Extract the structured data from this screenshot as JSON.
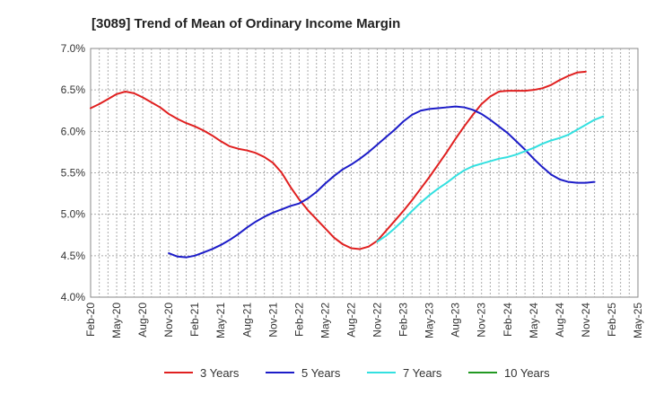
{
  "chart_data": {
    "type": "line",
    "title": "[3089]  Trend of Mean of Ordinary Income Margin",
    "xlabel": "",
    "ylabel": "",
    "x_ticks": [
      "Feb-20",
      "May-20",
      "Aug-20",
      "Nov-20",
      "Feb-21",
      "May-21",
      "Aug-21",
      "Nov-21",
      "Feb-22",
      "May-22",
      "Aug-22",
      "Nov-22",
      "Feb-23",
      "May-23",
      "Aug-23",
      "Nov-23",
      "Feb-24",
      "May-24",
      "Aug-24",
      "Nov-24",
      "Feb-25",
      "May-25"
    ],
    "y_ticks": [
      "4.0%",
      "4.5%",
      "5.0%",
      "5.5%",
      "6.0%",
      "6.5%",
      "7.0%"
    ],
    "ylim": [
      4.0,
      7.0
    ],
    "grid": true,
    "legend_position": "bottom",
    "series": [
      {
        "name": "3 Years",
        "color": "#e02020",
        "start_index": 0,
        "values": [
          6.28,
          6.33,
          6.39,
          6.45,
          6.48,
          6.46,
          6.41,
          6.35,
          6.29,
          6.21,
          6.15,
          6.1,
          6.06,
          6.01,
          5.95,
          5.88,
          5.82,
          5.79,
          5.77,
          5.74,
          5.69,
          5.62,
          5.5,
          5.33,
          5.18,
          5.05,
          4.94,
          4.83,
          4.72,
          4.64,
          4.59,
          4.58,
          4.61,
          4.68,
          4.8,
          4.92,
          5.04,
          5.17,
          5.31,
          5.45,
          5.6,
          5.75,
          5.91,
          6.06,
          6.2,
          6.33,
          6.42,
          6.48,
          6.49,
          6.49,
          6.49,
          6.5,
          6.52,
          6.56,
          6.62,
          6.67,
          6.71,
          6.72
        ]
      },
      {
        "name": "5 Years",
        "color": "#1c1cc8",
        "start_index": 9,
        "values": [
          4.53,
          4.49,
          4.48,
          4.5,
          4.54,
          4.58,
          4.63,
          4.69,
          4.76,
          4.84,
          4.91,
          4.97,
          5.02,
          5.06,
          5.1,
          5.13,
          5.19,
          5.27,
          5.37,
          5.46,
          5.54,
          5.6,
          5.67,
          5.75,
          5.84,
          5.93,
          6.02,
          6.12,
          6.2,
          6.25,
          6.27,
          6.28,
          6.29,
          6.3,
          6.29,
          6.26,
          6.21,
          6.14,
          6.06,
          5.98,
          5.88,
          5.78,
          5.67,
          5.57,
          5.48,
          5.42,
          5.39,
          5.38,
          5.38,
          5.39
        ]
      },
      {
        "name": "7 Years",
        "color": "#33e0e0",
        "start_index": 33,
        "values": [
          4.67,
          4.74,
          4.83,
          4.93,
          5.04,
          5.14,
          5.23,
          5.31,
          5.38,
          5.46,
          5.53,
          5.58,
          5.61,
          5.64,
          5.67,
          5.69,
          5.72,
          5.76,
          5.8,
          5.85,
          5.89,
          5.92,
          5.96,
          6.02,
          6.08,
          6.14,
          6.18
        ]
      },
      {
        "name": "10 Years",
        "color": "#229922",
        "start_index": 0,
        "values": []
      }
    ]
  }
}
